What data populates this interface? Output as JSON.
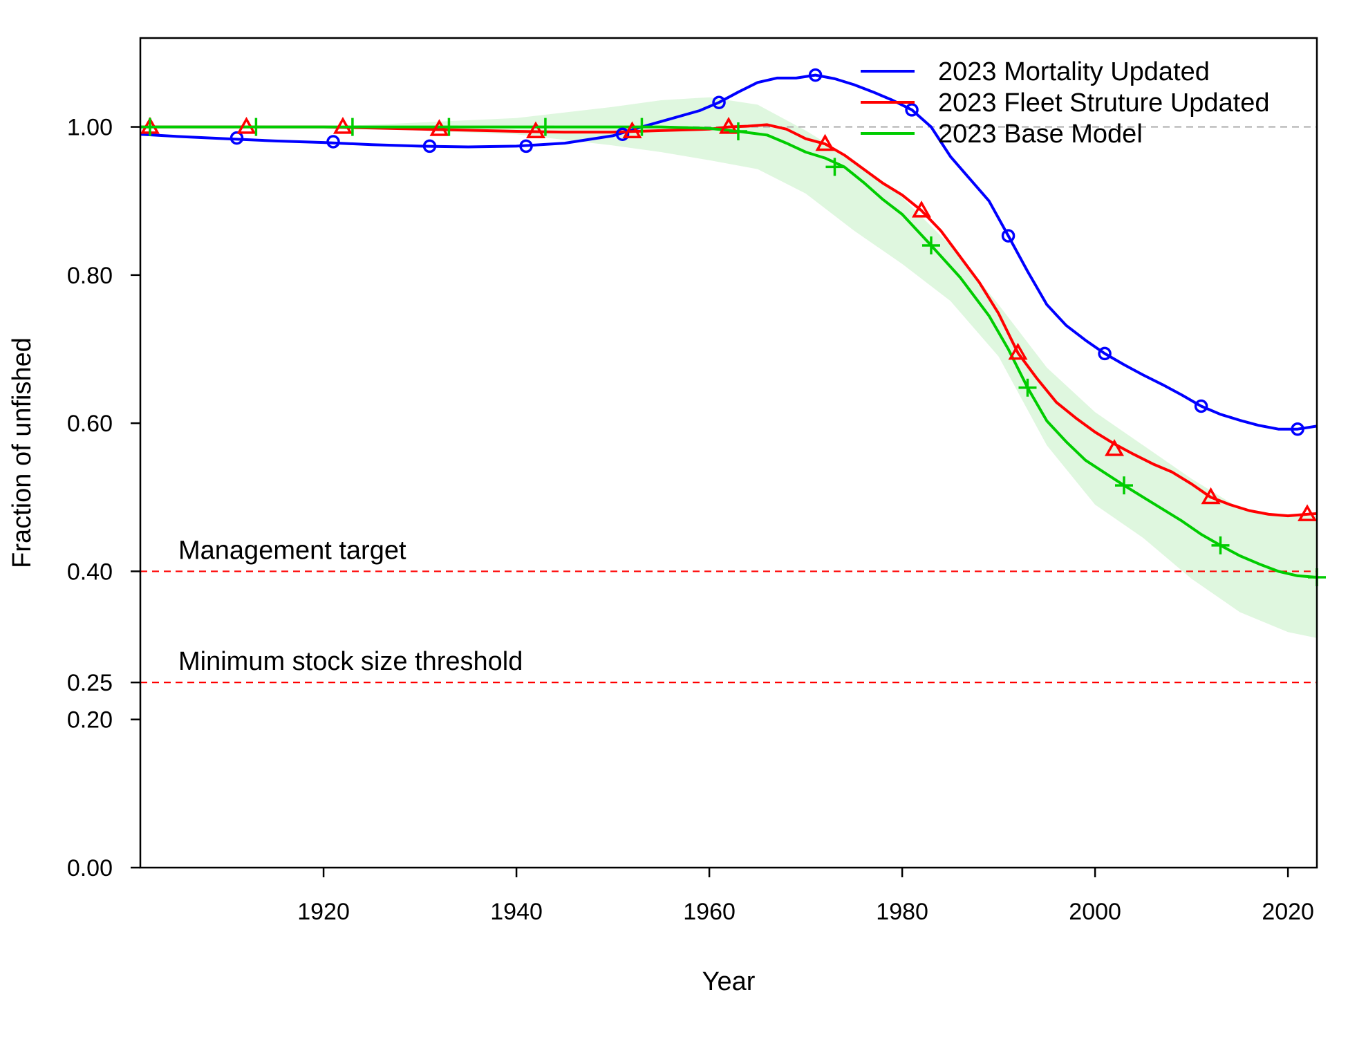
{
  "chart_data": {
    "type": "line",
    "xlabel": "Year",
    "ylabel": "Fraction of unfished",
    "xlim": [
      1901,
      2023
    ],
    "ylim": [
      0,
      1.12
    ],
    "x_ticks": [
      1920,
      1940,
      1960,
      1980,
      2000,
      2020
    ],
    "x_tick_labels": [
      "1920",
      "1940",
      "1960",
      "1980",
      "2000",
      "2020"
    ],
    "y_ticks": [
      0,
      0.2,
      0.25,
      0.4,
      0.6,
      0.8,
      1.0
    ],
    "y_tick_labels": [
      "0.00",
      "0.20",
      "0.25",
      "0.40",
      "0.60",
      "0.80",
      "1.00"
    ],
    "grid": false,
    "legend_position": "top-right",
    "reference_lines": [
      {
        "y": 1.0,
        "color": "#b0b0b0",
        "style": "dashed",
        "label": ""
      },
      {
        "y": 0.4,
        "color": "#ff0000",
        "style": "dashed",
        "label": "Management target"
      },
      {
        "y": 0.25,
        "color": "#ff0000",
        "style": "dashed",
        "label": "Minimum stock size threshold"
      }
    ],
    "series": [
      {
        "name": "2023 Mortality Updated",
        "color": "#0000ff",
        "marker": "circle",
        "x": [
          1901,
          1905,
          1910,
          1915,
          1920,
          1925,
          1930,
          1935,
          1940,
          1945,
          1950,
          1953,
          1956,
          1959,
          1961,
          1963,
          1965,
          1967,
          1969,
          1971,
          1973,
          1975,
          1977,
          1979,
          1981,
          1983,
          1985,
          1987,
          1989,
          1991,
          1993,
          1995,
          1997,
          1999,
          2001,
          2003,
          2005,
          2007,
          2009,
          2011,
          2013,
          2015,
          2017,
          2019,
          2021,
          2023
        ],
        "y": [
          0.99,
          0.987,
          0.984,
          0.981,
          0.979,
          0.976,
          0.974,
          0.973,
          0.974,
          0.978,
          0.988,
          1.0,
          1.011,
          1.022,
          1.033,
          1.047,
          1.06,
          1.066,
          1.066,
          1.07,
          1.065,
          1.057,
          1.047,
          1.036,
          1.023,
          1.0,
          0.96,
          0.93,
          0.9,
          0.853,
          0.805,
          0.76,
          0.732,
          0.712,
          0.694,
          0.679,
          0.665,
          0.652,
          0.638,
          0.623,
          0.612,
          0.604,
          0.597,
          0.592,
          0.592,
          0.596
        ],
        "marker_x": [
          1911,
          1921,
          1931,
          1941,
          1951,
          1961,
          1971,
          1981,
          1991,
          2001,
          2011,
          2021
        ],
        "marker_y": [
          0.985,
          0.98,
          0.974,
          0.974,
          0.99,
          1.033,
          1.07,
          1.023,
          0.853,
          0.694,
          0.623,
          0.592
        ]
      },
      {
        "name": "2023 Fleet Struture Updated",
        "color": "#ff0000",
        "marker": "triangle",
        "x": [
          1901,
          1910,
          1920,
          1930,
          1940,
          1945,
          1950,
          1955,
          1960,
          1962,
          1964,
          1966,
          1968,
          1970,
          1972,
          1974,
          1976,
          1978,
          1980,
          1982,
          1984,
          1986,
          1988,
          1990,
          1992,
          1994,
          1996,
          1998,
          2000,
          2002,
          2004,
          2006,
          2008,
          2010,
          2012,
          2014,
          2016,
          2018,
          2020,
          2022,
          2023
        ],
        "y": [
          1.0,
          1.0,
          1.0,
          0.997,
          0.994,
          0.993,
          0.993,
          0.995,
          0.997,
          1.0,
          1.001,
          1.003,
          0.997,
          0.984,
          0.977,
          0.962,
          0.943,
          0.924,
          0.908,
          0.887,
          0.86,
          0.825,
          0.79,
          0.748,
          0.695,
          0.66,
          0.628,
          0.607,
          0.588,
          0.572,
          0.558,
          0.545,
          0.534,
          0.518,
          0.5,
          0.49,
          0.482,
          0.477,
          0.475,
          0.477,
          0.478
        ],
        "marker_x": [
          1902,
          1912,
          1922,
          1932,
          1942,
          1952,
          1962,
          1972,
          1982,
          1992,
          2002,
          2012,
          2022
        ],
        "marker_y": [
          1.0,
          1.0,
          1.0,
          0.997,
          0.994,
          0.994,
          1.0,
          0.977,
          0.887,
          0.695,
          0.565,
          0.5,
          0.477
        ]
      },
      {
        "name": "2023 Base Model",
        "color": "#00cc00",
        "marker": "plus",
        "x": [
          1901,
          1910,
          1920,
          1930,
          1940,
          1950,
          1955,
          1960,
          1963,
          1966,
          1968,
          1970,
          1972,
          1974,
          1976,
          1978,
          1980,
          1983,
          1986,
          1989,
          1991,
          1993,
          1995,
          1997,
          1999,
          2001,
          2003,
          2005,
          2007,
          2009,
          2011,
          2013,
          2015,
          2017,
          2019,
          2021,
          2023
        ],
        "y": [
          1.0,
          1.0,
          1.0,
          1.0,
          1.0,
          1.0,
          1.0,
          0.998,
          0.994,
          0.989,
          0.978,
          0.966,
          0.958,
          0.946,
          0.925,
          0.902,
          0.882,
          0.84,
          0.797,
          0.745,
          0.7,
          0.648,
          0.603,
          0.575,
          0.55,
          0.533,
          0.516,
          0.5,
          0.484,
          0.468,
          0.45,
          0.435,
          0.421,
          0.41,
          0.4,
          0.394,
          0.392
        ],
        "marker_x": [
          1902,
          1913,
          1923,
          1933,
          1943,
          1953,
          1963,
          1973,
          1983,
          1993,
          2003,
          2013,
          2023
        ],
        "marker_y": [
          1.0,
          1.0,
          1.0,
          1.0,
          1.0,
          1.0,
          0.994,
          0.946,
          0.84,
          0.648,
          0.516,
          0.435,
          0.392
        ],
        "band_x": [
          1901,
          1920,
          1940,
          1950,
          1955,
          1960,
          1965,
          1970,
          1975,
          1980,
          1985,
          1990,
          1995,
          2000,
          2005,
          2010,
          2015,
          2020,
          2023
        ],
        "band_lower": [
          1.0,
          1.0,
          0.99,
          0.975,
          0.966,
          0.955,
          0.943,
          0.91,
          0.86,
          0.815,
          0.765,
          0.69,
          0.57,
          0.49,
          0.445,
          0.39,
          0.345,
          0.318,
          0.31
        ],
        "band_upper": [
          1.0,
          1.0,
          1.012,
          1.027,
          1.036,
          1.04,
          1.03,
          0.995,
          0.955,
          0.905,
          0.84,
          0.76,
          0.675,
          0.615,
          0.57,
          0.525,
          0.485,
          0.475,
          0.475
        ],
        "band_color": "#dff7df"
      }
    ]
  }
}
